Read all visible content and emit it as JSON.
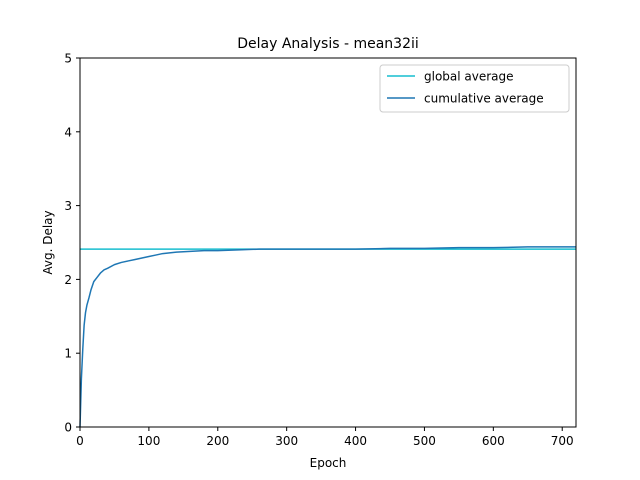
{
  "chart_data": {
    "type": "line",
    "title": "Delay Analysis - mean32ii",
    "xlabel": "Epoch",
    "ylabel": "Avg. Delay",
    "xlim": [
      0,
      720
    ],
    "ylim": [
      0,
      5
    ],
    "xticks": [
      0,
      100,
      200,
      300,
      400,
      500,
      600,
      700
    ],
    "yticks": [
      0,
      1,
      2,
      3,
      4,
      5
    ],
    "grid": false,
    "legend": {
      "position": "top-right"
    },
    "series": [
      {
        "name": "global average",
        "color": "#17becf",
        "x": [
          0,
          720
        ],
        "y": [
          2.41,
          2.41
        ]
      },
      {
        "name": "cumulative average",
        "color": "#1f77b4",
        "x": [
          0,
          2,
          4,
          6,
          8,
          10,
          13,
          16,
          20,
          25,
          30,
          35,
          40,
          50,
          60,
          70,
          80,
          90,
          100,
          110,
          120,
          140,
          160,
          180,
          200,
          230,
          260,
          300,
          350,
          400,
          450,
          500,
          550,
          600,
          650,
          700,
          720
        ],
        "y": [
          0.0,
          0.65,
          1.05,
          1.38,
          1.55,
          1.65,
          1.75,
          1.86,
          1.97,
          2.03,
          2.09,
          2.13,
          2.15,
          2.2,
          2.23,
          2.25,
          2.27,
          2.29,
          2.31,
          2.33,
          2.35,
          2.37,
          2.38,
          2.39,
          2.39,
          2.4,
          2.41,
          2.41,
          2.41,
          2.41,
          2.42,
          2.42,
          2.43,
          2.43,
          2.44,
          2.44,
          2.44
        ]
      }
    ]
  }
}
